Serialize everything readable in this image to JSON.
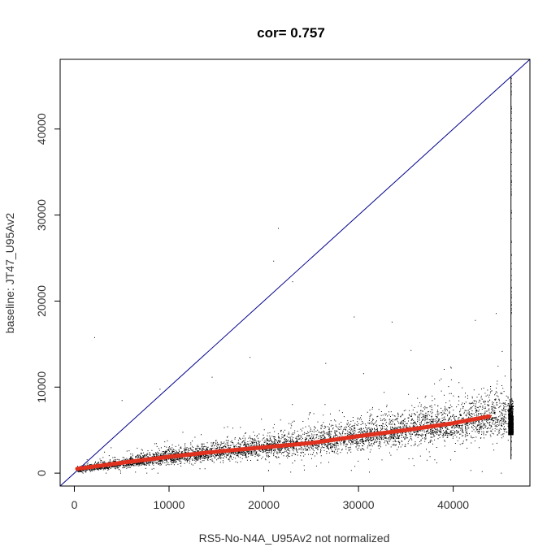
{
  "chart_data": {
    "type": "scatter",
    "title": "cor= 0.757",
    "xlabel": "RS5-No-N4A_U95Av2 not normalized",
    "ylabel": "baseline: JT47_U95Av2",
    "xlim": [
      -1500,
      48100
    ],
    "ylim": [
      -1500,
      48100
    ],
    "x_ticks": [
      0,
      10000,
      20000,
      30000,
      40000
    ],
    "y_ticks": [
      0,
      10000,
      20000,
      30000,
      40000
    ],
    "x_tick_labels": [
      "0",
      "10000",
      "20000",
      "30000",
      "40000"
    ],
    "y_tick_labels": [
      "0",
      "10000",
      "20000",
      "30000",
      "40000"
    ],
    "grid": false,
    "reference_line": {
      "name": "y = x",
      "color": "#00008b",
      "x": [
        -1500,
        48100
      ],
      "y": [
        -1500,
        48100
      ]
    },
    "trend_line": {
      "color": "#e0301e",
      "x": [
        300,
        5000,
        10000,
        15000,
        20000,
        25000,
        30000,
        35000,
        40000,
        43800
      ],
      "y": [
        500,
        1200,
        1900,
        2500,
        3000,
        3500,
        4300,
        5000,
        5800,
        6600
      ]
    },
    "scatter_summary": {
      "color": "#000000",
      "x_range": [
        300,
        46100
      ],
      "band_center": {
        "x": [
          0,
          10000,
          20000,
          30000,
          40000,
          46100
        ],
        "y": [
          400,
          1900,
          3000,
          4300,
          5800,
          7000
        ]
      },
      "band_spread": {
        "x": [
          0,
          10000,
          20000,
          30000,
          40000,
          46100
        ],
        "y": [
          250,
          700,
          1000,
          1400,
          1900,
          2600
        ]
      },
      "saturation_column": {
        "x": 46100,
        "y_range": [
          1600,
          46100
        ]
      },
      "outliers": [
        {
          "x": 2100,
          "y": 15800
        },
        {
          "x": 21500,
          "y": 28500
        },
        {
          "x": 21000,
          "y": 24700
        },
        {
          "x": 23000,
          "y": 22300
        },
        {
          "x": 29500,
          "y": 18200
        },
        {
          "x": 33500,
          "y": 17600
        },
        {
          "x": 35500,
          "y": 14300
        },
        {
          "x": 42300,
          "y": 17800
        },
        {
          "x": 44500,
          "y": 18600
        },
        {
          "x": 18500,
          "y": 13500
        },
        {
          "x": 26500,
          "y": 12800
        },
        {
          "x": 39000,
          "y": 12100
        },
        {
          "x": 30500,
          "y": 11600
        },
        {
          "x": 14500,
          "y": 11200
        },
        {
          "x": 9000,
          "y": 9800
        },
        {
          "x": 5000,
          "y": 8500
        }
      ]
    }
  }
}
